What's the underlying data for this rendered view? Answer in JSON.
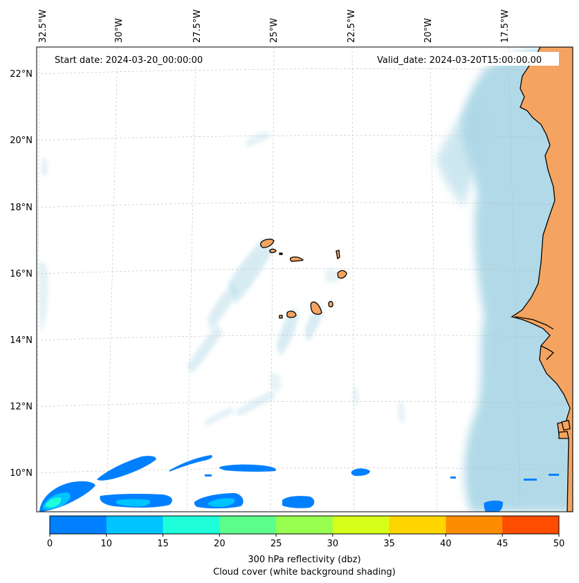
{
  "header": {
    "start_date": "Start date: 2024-03-20_00:00:00",
    "valid_date": "Valid_date: 2024-03-20T15:00:00.00"
  },
  "longitude_labels": [
    "32.5°W",
    "30°W",
    "27.5°W",
    "25°W",
    "22.5°W",
    "20°W",
    "17.5°W"
  ],
  "latitude_labels": [
    "22°N",
    "20°N",
    "18°N",
    "16°N",
    "14°N",
    "12°N",
    "10°N"
  ],
  "colorbar": {
    "ticks": [
      "0",
      "10",
      "15",
      "20",
      "25",
      "30",
      "35",
      "40",
      "45",
      "50"
    ],
    "colors": [
      "#0080ff",
      "#00c4ff",
      "#1effd9",
      "#5cff8c",
      "#98ff50",
      "#d6ff1a",
      "#ffd500",
      "#ff8c00",
      "#ff4d00"
    ],
    "label_line1": "300 hPa reflectivity (dbz)",
    "label_line2": "Cloud cover (white background shading)"
  },
  "colors": {
    "land": "#f4a460",
    "cloud": "#add8e6",
    "reflectivity_low": "#0080ff",
    "reflectivity_mid": "#00c4ff",
    "reflectivity_high": "#1effd9"
  }
}
